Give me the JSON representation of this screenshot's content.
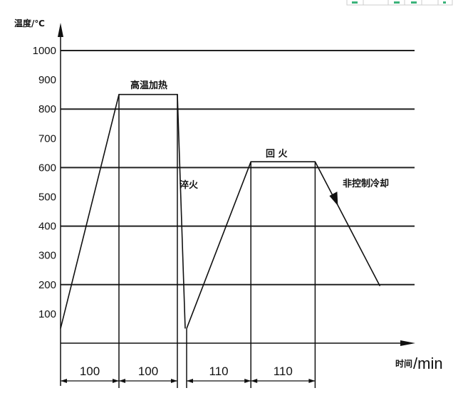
{
  "chart_data": {
    "type": "line",
    "ylabel": "温度/℃",
    "xlabel_main": "时间",
    "xlabel_unit": "/min",
    "ylim": [
      0,
      1000
    ],
    "yticks": [
      1000,
      900,
      800,
      700,
      600,
      500,
      400,
      300,
      200,
      100
    ],
    "gridlines": [
      1000,
      800,
      600,
      400,
      200
    ],
    "grid": true,
    "segments": [
      {
        "duration": "100"
      },
      {
        "duration": "100"
      },
      {
        "duration": "110"
      },
      {
        "duration": "110"
      }
    ],
    "profile": {
      "start_temp": 50,
      "heating_temp": 850,
      "quench_temp": 50,
      "tempering_temp": 620,
      "final_temp": 200
    },
    "annotations": {
      "heating": "高温加热",
      "quench": "淬火",
      "tempering": "回 火",
      "cooling": "非控制冷却"
    }
  },
  "colors": {
    "line": "#111111",
    "corner_widget": "#3bb37a"
  }
}
